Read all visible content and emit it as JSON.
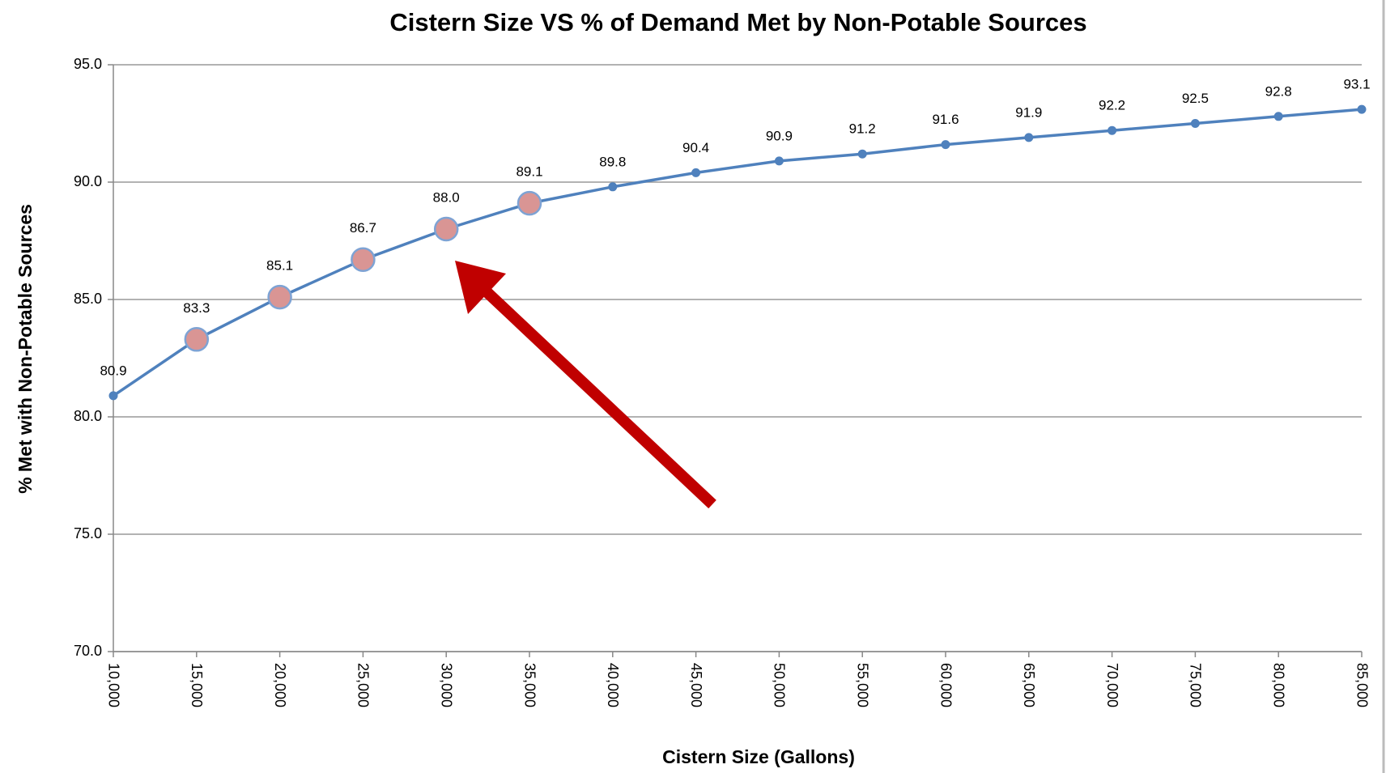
{
  "chart_data": {
    "type": "line",
    "title": "Cistern Size VS % of Demand Met by Non-Potable Sources",
    "xlabel": "Cistern Size (Gallons)",
    "ylabel": "% Met with Non-Potable Sources",
    "categories": [
      "10,000",
      "15,000",
      "20,000",
      "25,000",
      "30,000",
      "35,000",
      "40,000",
      "45,000",
      "50,000",
      "55,000",
      "60,000",
      "65,000",
      "70,000",
      "75,000",
      "80,000",
      "85,000"
    ],
    "series": [
      {
        "name": "% Met",
        "color": "#4f81bd",
        "values": [
          80.9,
          83.3,
          85.1,
          86.7,
          88.0,
          89.1,
          89.8,
          90.4,
          90.9,
          91.2,
          91.6,
          91.9,
          92.2,
          92.5,
          92.8,
          93.1
        ],
        "value_labels": [
          "80.9",
          "83.3",
          "85.1",
          "86.7",
          "88.0",
          "89.1",
          "89.8",
          "90.4",
          "90.9",
          "91.2",
          "91.6",
          "91.9",
          "92.2",
          "92.5",
          "92.8",
          "93.1"
        ],
        "highlight_points": [
          1,
          2,
          3,
          4,
          5
        ],
        "highlight_color": "#d99594"
      }
    ],
    "ylim": [
      70,
      95
    ],
    "yticks": [
      {
        "value": 70,
        "label": "70.0"
      },
      {
        "value": 75,
        "label": "75.0"
      },
      {
        "value": 80,
        "label": "80.0"
      },
      {
        "value": 85,
        "label": "85.0"
      },
      {
        "value": 90,
        "label": "90.0"
      },
      {
        "value": 95,
        "label": "95.0"
      }
    ],
    "grid": true
  }
}
